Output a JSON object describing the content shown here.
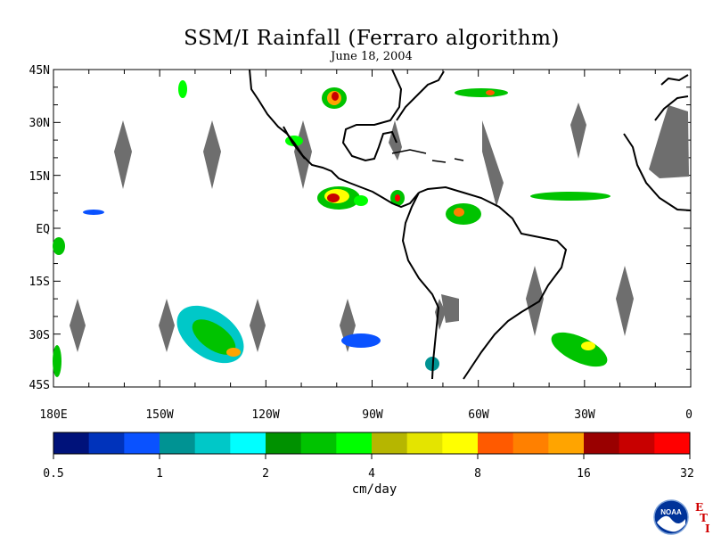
{
  "title": "SSM/I Rainfall (Ferraro algorithm)",
  "subtitle": "June 18, 2004",
  "map": {
    "lat_labels": [
      "45N",
      "30N",
      "15N",
      "EQ",
      "15S",
      "30S",
      "45S"
    ],
    "lon_labels": [
      "180E",
      "150W",
      "120W",
      "90W",
      "60W",
      "30W",
      "0"
    ],
    "missing_color": "#6e6e6e",
    "coast_color": "#000000"
  },
  "colorbar": {
    "colors": [
      "#00127a",
      "#0033bb",
      "#0a52ff",
      "#009393",
      "#00c8c8",
      "#00ffff",
      "#009100",
      "#00c300",
      "#00ff00",
      "#b6b600",
      "#e4e400",
      "#ffff00",
      "#ff5a00",
      "#ff8000",
      "#ffa400",
      "#990000",
      "#c80000",
      "#ff0000"
    ],
    "tick_labels": [
      "0.5",
      "1",
      "2",
      "4",
      "8",
      "16",
      "32"
    ],
    "unit": "cm/day"
  },
  "logo": {
    "text": "NOAA",
    "letters": [
      "E",
      "T",
      "I"
    ]
  }
}
